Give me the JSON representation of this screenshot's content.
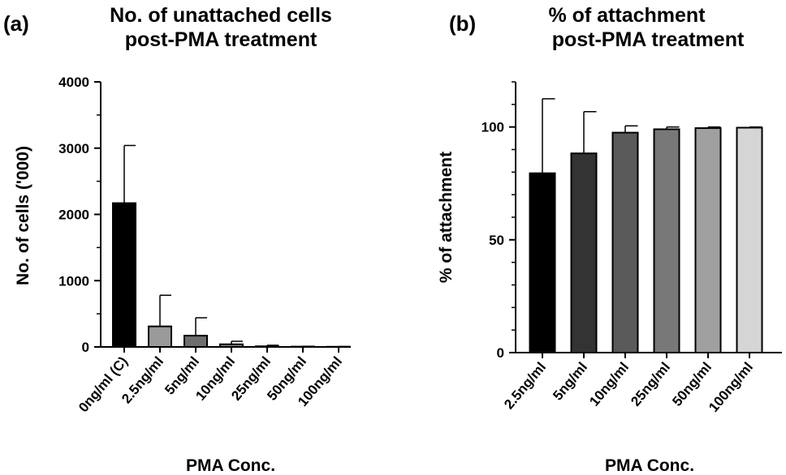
{
  "chart_data": [
    {
      "panel": "(a)",
      "type": "bar",
      "title_lines": [
        "No. of unattached cells",
        "post-PMA treatment"
      ],
      "xlabel": "PMA Conc.",
      "ylabel": "No. of cells ('000)",
      "ylim": [
        0,
        4000
      ],
      "yticks": [
        0,
        1000,
        2000,
        3000,
        4000
      ],
      "categories": [
        "0ng/ml (C)",
        "2.5ng/ml",
        "5ng/ml",
        "10ng/ml",
        "25ng/ml",
        "50ng/ml",
        "100ng/ml"
      ],
      "values": [
        2170,
        310,
        170,
        40,
        10,
        5,
        3
      ],
      "errors": [
        870,
        470,
        270,
        45,
        15,
        5,
        3
      ],
      "colors": [
        "#000000",
        "#9a9a9a",
        "#6e6e6e",
        "#8c8c8c",
        "#a0a0a0",
        "#b4b4b4",
        "#d0d0d0"
      ],
      "grid": false
    },
    {
      "panel": "(b)",
      "type": "bar",
      "title_lines": [
        "% of attachment",
        "post-PMA treatment"
      ],
      "xlabel": "PMA Conc.",
      "ylabel": "% of attachment",
      "ylim": [
        0,
        120
      ],
      "yticks": [
        0,
        50,
        100
      ],
      "categories": [
        "2.5ng/ml",
        "5ng/ml",
        "10ng/ml",
        "25ng/ml",
        "50ng/ml",
        "100ng/ml"
      ],
      "values": [
        79.5,
        88.3,
        97.5,
        99,
        99.5,
        99.7
      ],
      "errors": [
        33,
        18.5,
        3,
        1,
        0.5,
        0.3
      ],
      "colors": [
        "#000000",
        "#333333",
        "#5a5a5a",
        "#787878",
        "#a0a0a0",
        "#d5d5d5"
      ],
      "grid": false
    }
  ]
}
